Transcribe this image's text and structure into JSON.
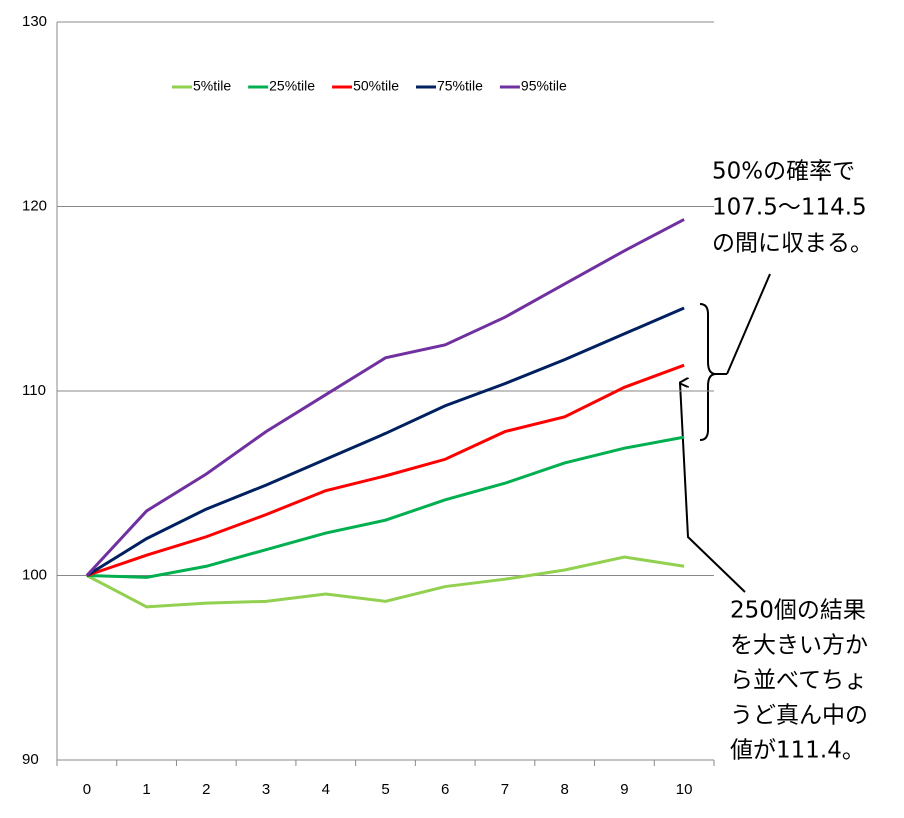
{
  "chart_data": {
    "type": "line",
    "categories": [
      "0",
      "1",
      "2",
      "3",
      "4",
      "5",
      "6",
      "7",
      "8",
      "9",
      "10"
    ],
    "series": [
      {
        "name": "5%tile",
        "color": "#92d050",
        "values": [
          100,
          98.3,
          98.5,
          98.6,
          99.0,
          98.6,
          99.4,
          99.8,
          100.3,
          101.0,
          100.5
        ]
      },
      {
        "name": "25%tile",
        "color": "#00b050",
        "values": [
          100,
          99.9,
          100.5,
          101.4,
          102.3,
          103.0,
          104.1,
          105.0,
          106.1,
          106.9,
          107.5
        ]
      },
      {
        "name": "50%tile",
        "color": "#ff0000",
        "values": [
          100,
          101.1,
          102.1,
          103.3,
          104.6,
          105.4,
          106.3,
          107.8,
          108.6,
          110.2,
          111.4
        ]
      },
      {
        "name": "75%tile",
        "color": "#002060",
        "values": [
          100,
          102.0,
          103.6,
          104.9,
          106.3,
          107.7,
          109.2,
          110.4,
          111.7,
          113.1,
          114.5
        ]
      },
      {
        "name": "95%tile",
        "color": "#7030a0",
        "values": [
          100,
          103.5,
          105.5,
          107.8,
          109.8,
          111.8,
          112.5,
          114.0,
          115.8,
          117.6,
          119.3
        ]
      }
    ],
    "ylim": [
      90,
      130
    ],
    "yticks": [
      90,
      100,
      110,
      120,
      130
    ],
    "grid": true,
    "legend": "top",
    "annotations": [
      {
        "lines": [
          "50%の確率で",
          "107.5〜114.5",
          "の間に収まる。"
        ]
      },
      {
        "lines": [
          "250個の結果",
          "を大きい方か",
          "ら並べてちょ",
          "うど真ん中の",
          "値が111.4。"
        ]
      }
    ]
  }
}
